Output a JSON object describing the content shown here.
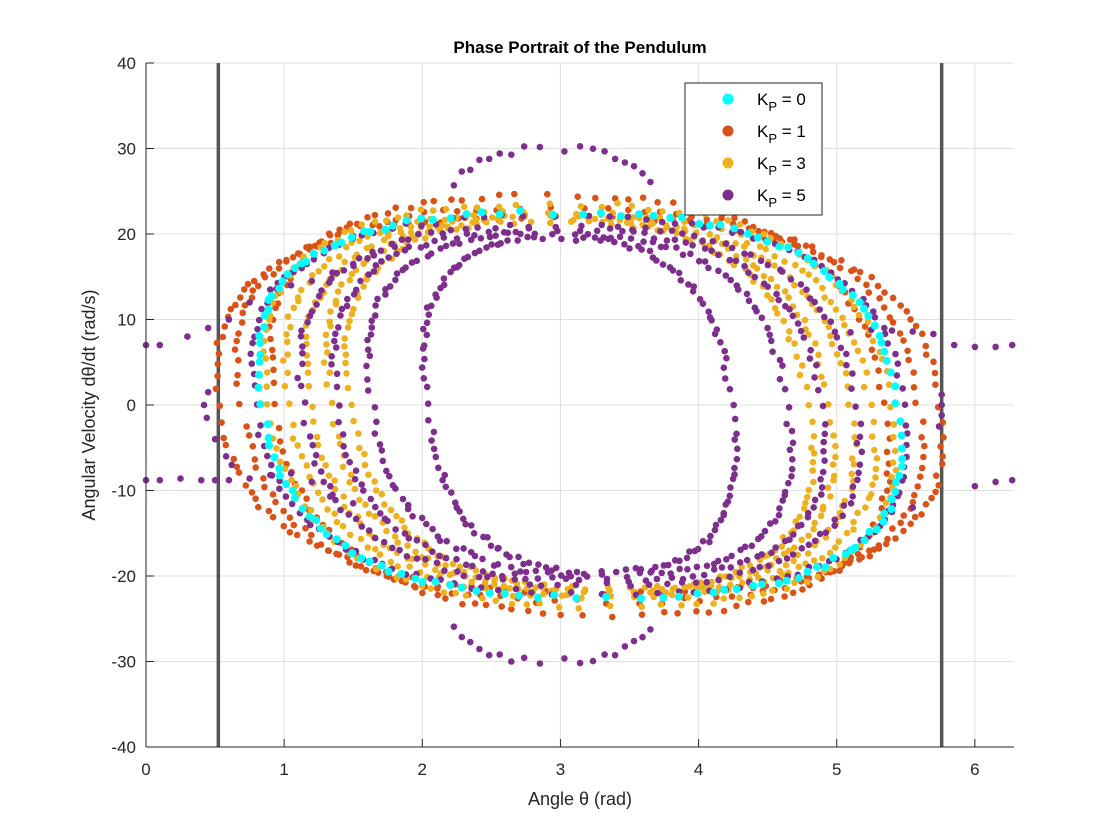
{
  "chart_data": {
    "type": "scatter",
    "title": "Phase Portrait of the Pendulum",
    "xlabel": "Angle θ (rad)",
    "ylabel": "Angular Velocity dθ/dt (rad/s)",
    "xlim": [
      0,
      6.2832
    ],
    "ylim": [
      -40,
      40
    ],
    "xticks": [
      0,
      1,
      2,
      3,
      4,
      5,
      6
    ],
    "yticks": [
      -40,
      -30,
      -20,
      -10,
      0,
      10,
      20,
      30,
      40
    ],
    "xtick_labels": [
      "0",
      "1",
      "2",
      "3",
      "4",
      "5",
      "6"
    ],
    "ytick_labels": [
      "-40",
      "-30",
      "-20",
      "-10",
      "0",
      "10",
      "20",
      "30",
      "40"
    ],
    "grid": true,
    "legend_position": "top-right",
    "reference_lines_x": [
      0.5236,
      5.7596
    ],
    "series": [
      {
        "name": "K_P = 0",
        "label_main": "K",
        "label_sub": "P",
        "label_rest": " = 0",
        "color": "#00FFFF",
        "orbits": [
          {
            "cx": 3.14,
            "ax": 2.3,
            "ay": 22.5,
            "skew": 0.35
          }
        ]
      },
      {
        "name": "K_P = 1",
        "label_main": "K",
        "label_sub": "P",
        "label_rest": " = 1",
        "color": "#D95319",
        "orbits": [
          {
            "cx": 3.14,
            "ax": 2.45,
            "ay": 23.0,
            "skew": 0.35
          },
          {
            "cx": 3.14,
            "ax": 2.6,
            "ay": 22.0,
            "skew": 0.3
          },
          {
            "cx": 3.14,
            "ax": 2.2,
            "ay": 24.5,
            "skew": 0.4
          }
        ]
      },
      {
        "name": "K_P = 3",
        "label_main": "K",
        "label_sub": "P",
        "label_rest": " = 3",
        "color": "#EDB120",
        "orbits": [
          {
            "cx": 3.14,
            "ax": 2.1,
            "ay": 22.5,
            "skew": 0.35
          },
          {
            "cx": 3.14,
            "ax": 1.95,
            "ay": 22.0,
            "skew": 0.35
          },
          {
            "cx": 3.14,
            "ax": 1.8,
            "ay": 21.8,
            "skew": 0.35
          },
          {
            "cx": 3.14,
            "ax": 1.65,
            "ay": 21.5,
            "skew": 0.35
          },
          {
            "cx": 3.14,
            "ax": 2.25,
            "ay": 23.5,
            "skew": 0.38
          }
        ]
      },
      {
        "name": "K_P = 5",
        "label_main": "K",
        "label_sub": "P",
        "label_rest": " = 5",
        "color": "#7E2F8E",
        "orbits": [
          {
            "cx": 3.14,
            "ax": 2.35,
            "ay": 22.0,
            "skew": 0.3
          },
          {
            "cx": 3.14,
            "ax": 2.0,
            "ay": 21.0,
            "skew": 0.3
          },
          {
            "cx": 3.14,
            "ax": 1.75,
            "ay": 20.5,
            "skew": 0.3
          },
          {
            "cx": 3.14,
            "ax": 1.5,
            "ay": 20.0,
            "skew": 0.3
          },
          {
            "cx": 3.14,
            "ax": 1.1,
            "ay": 19.5,
            "skew": 0.25
          },
          {
            "cx": 3.14,
            "ax": 2.2,
            "ay": 30.0,
            "skew": 0.1,
            "outer": true
          }
        ]
      }
    ]
  }
}
